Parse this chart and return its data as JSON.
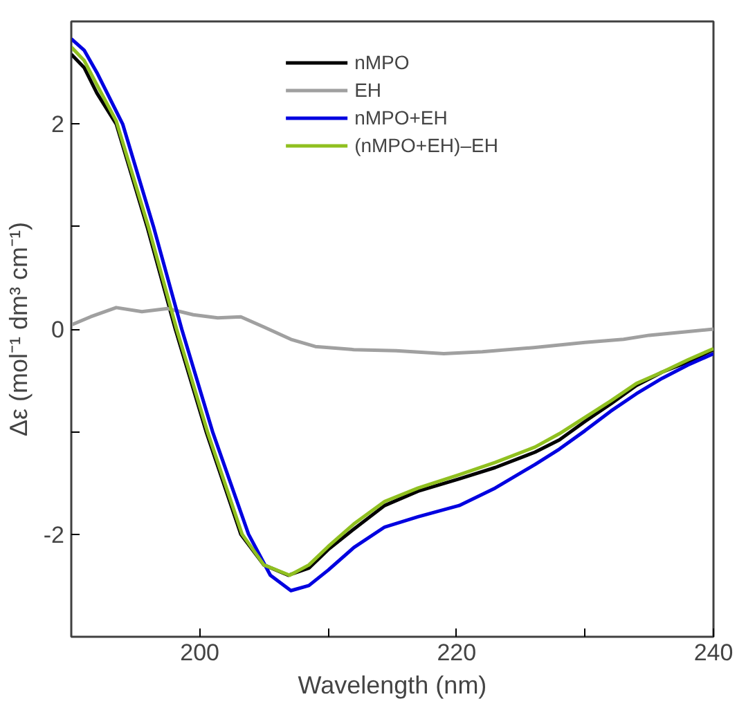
{
  "chart_data": {
    "type": "line",
    "xlabel": "Wavelength (nm)",
    "ylabel": "Δε (mol⁻¹ dm³ cm⁻¹)",
    "xlim": [
      190,
      240
    ],
    "xticks": [
      200,
      {
        "value": 210,
        "label": null
      },
      220,
      {
        "value": 230,
        "label": null
      },
      240
    ],
    "ylim": [
      -3,
      3
    ],
    "yticks": [
      -2,
      {
        "value": -1,
        "label": null
      },
      0,
      {
        "value": 1,
        "label": null
      },
      2
    ],
    "grid": false,
    "legend": "top",
    "marker": "none",
    "line_style": "solid",
    "series": [
      {
        "name": "nMPO",
        "color": "#000000",
        "x": [
          190,
          191,
          192,
          193.5,
          195.9,
          198.1,
          200.5,
          203.2,
          205,
          206.9,
          208.5,
          210,
          212,
          214.4,
          217,
          220.2,
          223,
          226.1,
          228,
          230,
          232,
          234,
          236,
          238,
          240
        ],
        "values": [
          2.68,
          2.55,
          2.3,
          2.0,
          1.0,
          0.0,
          -1.0,
          -2.0,
          -2.3,
          -2.4,
          -2.33,
          -2.15,
          -1.95,
          -1.72,
          -1.58,
          -1.46,
          -1.35,
          -1.2,
          -1.08,
          -0.9,
          -0.73,
          -0.55,
          -0.42,
          -0.32,
          -0.2
        ]
      },
      {
        "name": "EH",
        "color": "#a0a0a0",
        "x": [
          190,
          191.5,
          193.5,
          195.5,
          197.5,
          199.5,
          201.4,
          203.2,
          205,
          207.1,
          209,
          212,
          215.3,
          219,
          222,
          226,
          230,
          233,
          235,
          237.5,
          240
        ],
        "values": [
          0.04,
          0.12,
          0.21,
          0.17,
          0.2,
          0.14,
          0.11,
          0.12,
          0.02,
          -0.1,
          -0.17,
          -0.2,
          -0.21,
          -0.24,
          -0.22,
          -0.18,
          -0.13,
          -0.1,
          -0.06,
          -0.03,
          0.0
        ]
      },
      {
        "name": "nMPO+EH",
        "color": "#0000e0",
        "x": [
          190,
          191,
          192,
          194,
          196.4,
          198.6,
          201,
          203.8,
          205.5,
          207.1,
          208.5,
          210,
          212,
          214.4,
          217,
          220.2,
          223,
          226.1,
          228,
          230,
          232,
          234,
          236,
          238,
          240
        ],
        "values": [
          2.83,
          2.72,
          2.5,
          2.0,
          1.0,
          0.0,
          -1.0,
          -2.0,
          -2.4,
          -2.55,
          -2.5,
          -2.35,
          -2.13,
          -1.93,
          -1.83,
          -1.72,
          -1.55,
          -1.32,
          -1.17,
          -0.99,
          -0.8,
          -0.63,
          -0.48,
          -0.35,
          -0.24
        ]
      },
      {
        "name": "(nMPO+EH)–EH",
        "color": "#90c020",
        "x": [
          190,
          191,
          192,
          193.5,
          196,
          198.2,
          200.6,
          203.3,
          205,
          207,
          208.5,
          210,
          212,
          214.4,
          217,
          220.2,
          223,
          226.1,
          228,
          230,
          232,
          234,
          236,
          238,
          240
        ],
        "values": [
          2.75,
          2.62,
          2.38,
          2.03,
          1.0,
          0.0,
          -1.0,
          -2.0,
          -2.3,
          -2.4,
          -2.3,
          -2.12,
          -1.9,
          -1.68,
          -1.55,
          -1.42,
          -1.3,
          -1.15,
          -1.02,
          -0.86,
          -0.7,
          -0.53,
          -0.42,
          -0.3,
          -0.19
        ]
      }
    ]
  }
}
